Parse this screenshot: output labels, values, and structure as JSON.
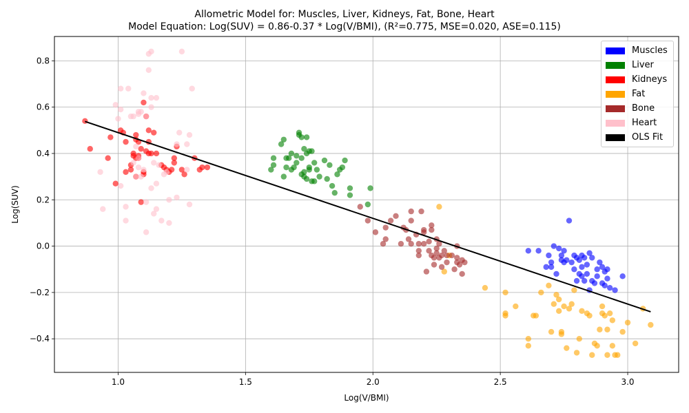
{
  "chart_data": {
    "type": "scatter",
    "title": "Allometric Model for: Muscles, Liver, Kidneys, Fat, Bone, Heart",
    "subtitle": "Model Equation: Log(SUV) = 0.86-0.37 * Log(V/BMI), (R²=0.775, MSE=0.020, ASE=0.115)",
    "xlabel": "Log(V/BMI)",
    "ylabel": "Log(SUV)",
    "xlim": [
      0.75,
      3.2
    ],
    "ylim": [
      -0.545,
      0.905
    ],
    "xticks": [
      1.0,
      1.5,
      2.0,
      2.5,
      3.0
    ],
    "yticks": [
      -0.4,
      -0.2,
      0.0,
      0.2,
      0.4,
      0.6,
      0.8
    ],
    "xtick_labels": [
      "1.0",
      "1.5",
      "2.0",
      "2.5",
      "3.0"
    ],
    "ytick_labels": [
      "−0.4",
      "−0.2",
      "0.0",
      "0.2",
      "0.4",
      "0.6",
      "0.8"
    ],
    "grid": true,
    "legend_position": "top-right",
    "series": [
      {
        "name": "Muscles",
        "color": "#0000ff",
        "points": [
          [
            2.61,
            -0.02
          ],
          [
            2.65,
            -0.02
          ],
          [
            2.68,
            -0.09
          ],
          [
            2.69,
            -0.04
          ],
          [
            2.7,
            -0.07
          ],
          [
            2.71,
            0.0
          ],
          [
            2.72,
            -0.12
          ],
          [
            2.73,
            -0.01
          ],
          [
            2.74,
            -0.04
          ],
          [
            2.74,
            -0.06
          ],
          [
            2.75,
            -0.02
          ],
          [
            2.76,
            -0.06
          ],
          [
            2.77,
            0.11
          ],
          [
            2.78,
            -0.07
          ],
          [
            2.79,
            -0.04
          ],
          [
            2.79,
            -0.1
          ],
          [
            2.8,
            -0.15
          ],
          [
            2.8,
            -0.05
          ],
          [
            2.81,
            -0.12
          ],
          [
            2.81,
            -0.06
          ],
          [
            2.82,
            -0.09
          ],
          [
            2.82,
            -0.04
          ],
          [
            2.83,
            -0.15
          ],
          [
            2.83,
            -0.05
          ],
          [
            2.84,
            -0.12
          ],
          [
            2.84,
            -0.08
          ],
          [
            2.85,
            -0.19
          ],
          [
            2.85,
            -0.03
          ],
          [
            2.86,
            -0.05
          ],
          [
            2.87,
            -0.16
          ],
          [
            2.88,
            -0.1
          ],
          [
            2.88,
            -0.13
          ],
          [
            2.89,
            -0.07
          ],
          [
            2.9,
            -0.09
          ],
          [
            2.9,
            -0.16
          ],
          [
            2.91,
            -0.11
          ],
          [
            2.91,
            -0.17
          ],
          [
            2.92,
            -0.14
          ],
          [
            2.93,
            -0.18
          ],
          [
            2.95,
            -0.19
          ],
          [
            2.98,
            -0.13
          ],
          [
            2.7,
            -0.09
          ],
          [
            2.75,
            -0.07
          ],
          [
            2.82,
            -0.13
          ],
          [
            2.86,
            -0.15
          ],
          [
            2.92,
            -0.1
          ]
        ]
      },
      {
        "name": "Liver",
        "color": "#008000",
        "points": [
          [
            1.6,
            0.33
          ],
          [
            1.61,
            0.38
          ],
          [
            1.61,
            0.35
          ],
          [
            1.64,
            0.44
          ],
          [
            1.65,
            0.46
          ],
          [
            1.65,
            0.3
          ],
          [
            1.66,
            0.38
          ],
          [
            1.66,
            0.34
          ],
          [
            1.67,
            0.38
          ],
          [
            1.68,
            0.4
          ],
          [
            1.68,
            0.33
          ],
          [
            1.69,
            0.34
          ],
          [
            1.7,
            0.36
          ],
          [
            1.7,
            0.39
          ],
          [
            1.71,
            0.49
          ],
          [
            1.71,
            0.48
          ],
          [
            1.72,
            0.47
          ],
          [
            1.72,
            0.38
          ],
          [
            1.73,
            0.42
          ],
          [
            1.73,
            0.32
          ],
          [
            1.73,
            0.3
          ],
          [
            1.74,
            0.47
          ],
          [
            1.74,
            0.4
          ],
          [
            1.74,
            0.29
          ],
          [
            1.75,
            0.34
          ],
          [
            1.75,
            0.33
          ],
          [
            1.76,
            0.41
          ],
          [
            1.76,
            0.28
          ],
          [
            1.77,
            0.36
          ],
          [
            1.77,
            0.28
          ],
          [
            1.78,
            0.33
          ],
          [
            1.79,
            0.3
          ],
          [
            1.81,
            0.37
          ],
          [
            1.82,
            0.29
          ],
          [
            1.83,
            0.35
          ],
          [
            1.84,
            0.26
          ],
          [
            1.85,
            0.23
          ],
          [
            1.86,
            0.31
          ],
          [
            1.87,
            0.33
          ],
          [
            1.88,
            0.34
          ],
          [
            1.89,
            0.37
          ],
          [
            1.91,
            0.25
          ],
          [
            1.91,
            0.22
          ],
          [
            1.98,
            0.18
          ],
          [
            1.99,
            0.25
          ],
          [
            1.72,
            0.31
          ],
          [
            1.75,
            0.41
          ]
        ]
      },
      {
        "name": "Kidneys",
        "color": "#ff0000",
        "points": [
          [
            0.87,
            0.54
          ],
          [
            0.89,
            0.42
          ],
          [
            0.96,
            0.38
          ],
          [
            0.97,
            0.47
          ],
          [
            0.99,
            0.27
          ],
          [
            1.01,
            0.5
          ],
          [
            1.02,
            0.49
          ],
          [
            1.03,
            0.32
          ],
          [
            1.03,
            0.45
          ],
          [
            1.05,
            0.35
          ],
          [
            1.05,
            0.33
          ],
          [
            1.06,
            0.39
          ],
          [
            1.06,
            0.4
          ],
          [
            1.07,
            0.3
          ],
          [
            1.07,
            0.48
          ],
          [
            1.07,
            0.46
          ],
          [
            1.08,
            0.45
          ],
          [
            1.08,
            0.39
          ],
          [
            1.08,
            0.38
          ],
          [
            1.09,
            0.42
          ],
          [
            1.09,
            0.19
          ],
          [
            1.1,
            0.32
          ],
          [
            1.1,
            0.31
          ],
          [
            1.1,
            0.62
          ],
          [
            1.11,
            0.41
          ],
          [
            1.11,
            0.56
          ],
          [
            1.12,
            0.5
          ],
          [
            1.12,
            0.45
          ],
          [
            1.13,
            0.4
          ],
          [
            1.14,
            0.49
          ],
          [
            1.15,
            0.4
          ],
          [
            1.17,
            0.35
          ],
          [
            1.18,
            0.34
          ],
          [
            1.19,
            0.33
          ],
          [
            1.2,
            0.32
          ],
          [
            1.21,
            0.33
          ],
          [
            1.22,
            0.36
          ],
          [
            1.22,
            0.38
          ],
          [
            1.23,
            0.43
          ],
          [
            1.25,
            0.33
          ],
          [
            1.26,
            0.31
          ],
          [
            1.3,
            0.38
          ],
          [
            1.32,
            0.33
          ],
          [
            1.33,
            0.34
          ],
          [
            1.35,
            0.34
          ],
          [
            1.07,
            0.38
          ],
          [
            1.12,
            0.4
          ]
        ]
      },
      {
        "name": "Fat",
        "color": "#ffa500",
        "points": [
          [
            2.26,
            0.17
          ],
          [
            2.28,
            -0.11
          ],
          [
            2.3,
            -0.04
          ],
          [
            2.44,
            -0.18
          ],
          [
            2.52,
            -0.2
          ],
          [
            2.52,
            -0.29
          ],
          [
            2.52,
            -0.3
          ],
          [
            2.56,
            -0.26
          ],
          [
            2.61,
            -0.4
          ],
          [
            2.61,
            -0.43
          ],
          [
            2.63,
            -0.3
          ],
          [
            2.64,
            -0.3
          ],
          [
            2.66,
            -0.2
          ],
          [
            2.69,
            -0.17
          ],
          [
            2.7,
            -0.37
          ],
          [
            2.71,
            -0.25
          ],
          [
            2.72,
            -0.21
          ],
          [
            2.73,
            -0.23
          ],
          [
            2.73,
            -0.28
          ],
          [
            2.74,
            -0.37
          ],
          [
            2.74,
            -0.38
          ],
          [
            2.75,
            -0.26
          ],
          [
            2.76,
            -0.44
          ],
          [
            2.77,
            -0.27
          ],
          [
            2.78,
            -0.25
          ],
          [
            2.79,
            -0.19
          ],
          [
            2.8,
            -0.46
          ],
          [
            2.81,
            -0.4
          ],
          [
            2.82,
            -0.28
          ],
          [
            2.84,
            -0.29
          ],
          [
            2.85,
            -0.3
          ],
          [
            2.86,
            -0.47
          ],
          [
            2.87,
            -0.42
          ],
          [
            2.88,
            -0.43
          ],
          [
            2.89,
            -0.36
          ],
          [
            2.9,
            -0.26
          ],
          [
            2.9,
            -0.29
          ],
          [
            2.91,
            -0.3
          ],
          [
            2.92,
            -0.47
          ],
          [
            2.92,
            -0.36
          ],
          [
            2.93,
            -0.29
          ],
          [
            2.94,
            -0.32
          ],
          [
            2.94,
            -0.43
          ],
          [
            2.95,
            -0.47
          ],
          [
            2.96,
            -0.47
          ],
          [
            2.98,
            -0.37
          ],
          [
            3.0,
            -0.33
          ],
          [
            3.03,
            -0.42
          ],
          [
            3.06,
            -0.27
          ],
          [
            3.09,
            -0.34
          ]
        ]
      },
      {
        "name": "Bone",
        "color": "#a52a2a",
        "points": [
          [
            1.95,
            0.17
          ],
          [
            1.98,
            0.11
          ],
          [
            2.01,
            0.06
          ],
          [
            2.04,
            0.01
          ],
          [
            2.05,
            0.08
          ],
          [
            2.05,
            0.03
          ],
          [
            2.07,
            0.11
          ],
          [
            2.09,
            0.13
          ],
          [
            2.11,
            0.01
          ],
          [
            2.12,
            0.08
          ],
          [
            2.13,
            0.07
          ],
          [
            2.14,
            0.03
          ],
          [
            2.15,
            0.15
          ],
          [
            2.15,
            0.11
          ],
          [
            2.15,
            0.01
          ],
          [
            2.17,
            0.05
          ],
          [
            2.18,
            0.01
          ],
          [
            2.18,
            -0.02
          ],
          [
            2.18,
            -0.04
          ],
          [
            2.19,
            0.15
          ],
          [
            2.2,
            0.06
          ],
          [
            2.2,
            0.07
          ],
          [
            2.2,
            0.01
          ],
          [
            2.21,
            -0.11
          ],
          [
            2.22,
            -0.02
          ],
          [
            2.22,
            0.02
          ],
          [
            2.23,
            -0.04
          ],
          [
            2.23,
            0.09
          ],
          [
            2.23,
            0.07
          ],
          [
            2.24,
            -0.05
          ],
          [
            2.24,
            -0.08
          ],
          [
            2.25,
            -0.01
          ],
          [
            2.25,
            0.03
          ],
          [
            2.25,
            -0.03
          ],
          [
            2.26,
            -0.05
          ],
          [
            2.26,
            0.01
          ],
          [
            2.27,
            -0.09
          ],
          [
            2.27,
            -0.04
          ],
          [
            2.28,
            -0.02
          ],
          [
            2.29,
            -0.07
          ],
          [
            2.29,
            -0.04
          ],
          [
            2.31,
            -0.04
          ],
          [
            2.32,
            -0.1
          ],
          [
            2.33,
            -0.05
          ],
          [
            2.33,
            0.0
          ],
          [
            2.33,
            -0.07
          ],
          [
            2.34,
            -0.08
          ],
          [
            2.35,
            -0.06
          ],
          [
            2.35,
            -0.12
          ],
          [
            2.36,
            -0.07
          ]
        ]
      },
      {
        "name": "Heart",
        "color": "#ffc0cb",
        "points": [
          [
            0.93,
            0.32
          ],
          [
            0.94,
            0.16
          ],
          [
            0.99,
            0.61
          ],
          [
            1.0,
            0.55
          ],
          [
            1.01,
            0.68
          ],
          [
            1.01,
            0.59
          ],
          [
            1.01,
            0.26
          ],
          [
            1.03,
            0.17
          ],
          [
            1.03,
            0.11
          ],
          [
            1.04,
            0.68
          ],
          [
            1.05,
            0.56
          ],
          [
            1.06,
            0.56
          ],
          [
            1.06,
            0.36
          ],
          [
            1.07,
            0.3
          ],
          [
            1.07,
            0.43
          ],
          [
            1.08,
            0.57
          ],
          [
            1.08,
            0.38
          ],
          [
            1.08,
            0.34
          ],
          [
            1.09,
            0.58
          ],
          [
            1.09,
            0.3
          ],
          [
            1.1,
            0.66
          ],
          [
            1.1,
            0.33
          ],
          [
            1.11,
            0.56
          ],
          [
            1.11,
            0.19
          ],
          [
            1.11,
            0.06
          ],
          [
            1.12,
            0.76
          ],
          [
            1.12,
            0.83
          ],
          [
            1.13,
            0.84
          ],
          [
            1.13,
            0.64
          ],
          [
            1.13,
            0.6
          ],
          [
            1.13,
            0.25
          ],
          [
            1.14,
            0.14
          ],
          [
            1.14,
            0.36
          ],
          [
            1.15,
            0.64
          ],
          [
            1.15,
            0.27
          ],
          [
            1.15,
            0.16
          ],
          [
            1.16,
            0.35
          ],
          [
            1.17,
            0.11
          ],
          [
            1.18,
            0.31
          ],
          [
            1.19,
            0.32
          ],
          [
            1.2,
            0.2
          ],
          [
            1.2,
            0.1
          ],
          [
            1.23,
            0.44
          ],
          [
            1.23,
            0.21
          ],
          [
            1.24,
            0.49
          ],
          [
            1.25,
            0.84
          ],
          [
            1.27,
            0.44
          ],
          [
            1.27,
            0.33
          ],
          [
            1.28,
            0.48
          ],
          [
            1.28,
            0.18
          ],
          [
            1.29,
            0.68
          ],
          [
            1.08,
            0.58
          ]
        ]
      }
    ],
    "fit": {
      "name": "OLS Fit",
      "color": "#000000",
      "intercept": 0.86,
      "slope": -0.37,
      "x_range": [
        0.87,
        3.09
      ]
    }
  }
}
